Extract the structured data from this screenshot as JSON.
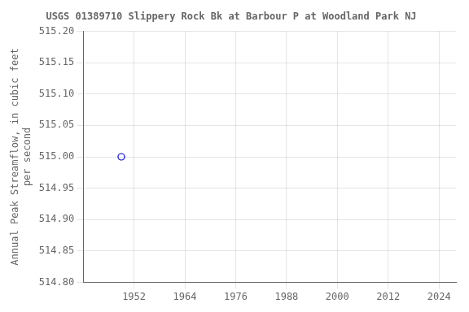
{
  "chart_data": {
    "type": "scatter",
    "title": "USGS 01389710 Slippery Rock Bk at Barbour P at Woodland Park NJ",
    "ylabel": "Annual Peak Streamflow, in cubic feet\nper second",
    "x": [
      1949
    ],
    "values": [
      515.0
    ],
    "color": "#0000cc",
    "marker": "circle",
    "xlim": [
      1940,
      2028
    ],
    "xticks": [
      1952,
      1964,
      1976,
      1988,
      2000,
      2012,
      2024
    ],
    "ylim": [
      514.8,
      515.2
    ],
    "yticks": [
      {
        "value": 514.8,
        "label": "514.80"
      },
      514.85,
      {
        "value": 514.9,
        "label": "514.90"
      },
      514.95,
      {
        "value": 515.0,
        "label": "515.00"
      },
      515.05,
      {
        "value": 515.1,
        "label": "515.10"
      },
      515.15,
      {
        "value": 515.2,
        "label": "515.20"
      }
    ],
    "grid": true
  }
}
